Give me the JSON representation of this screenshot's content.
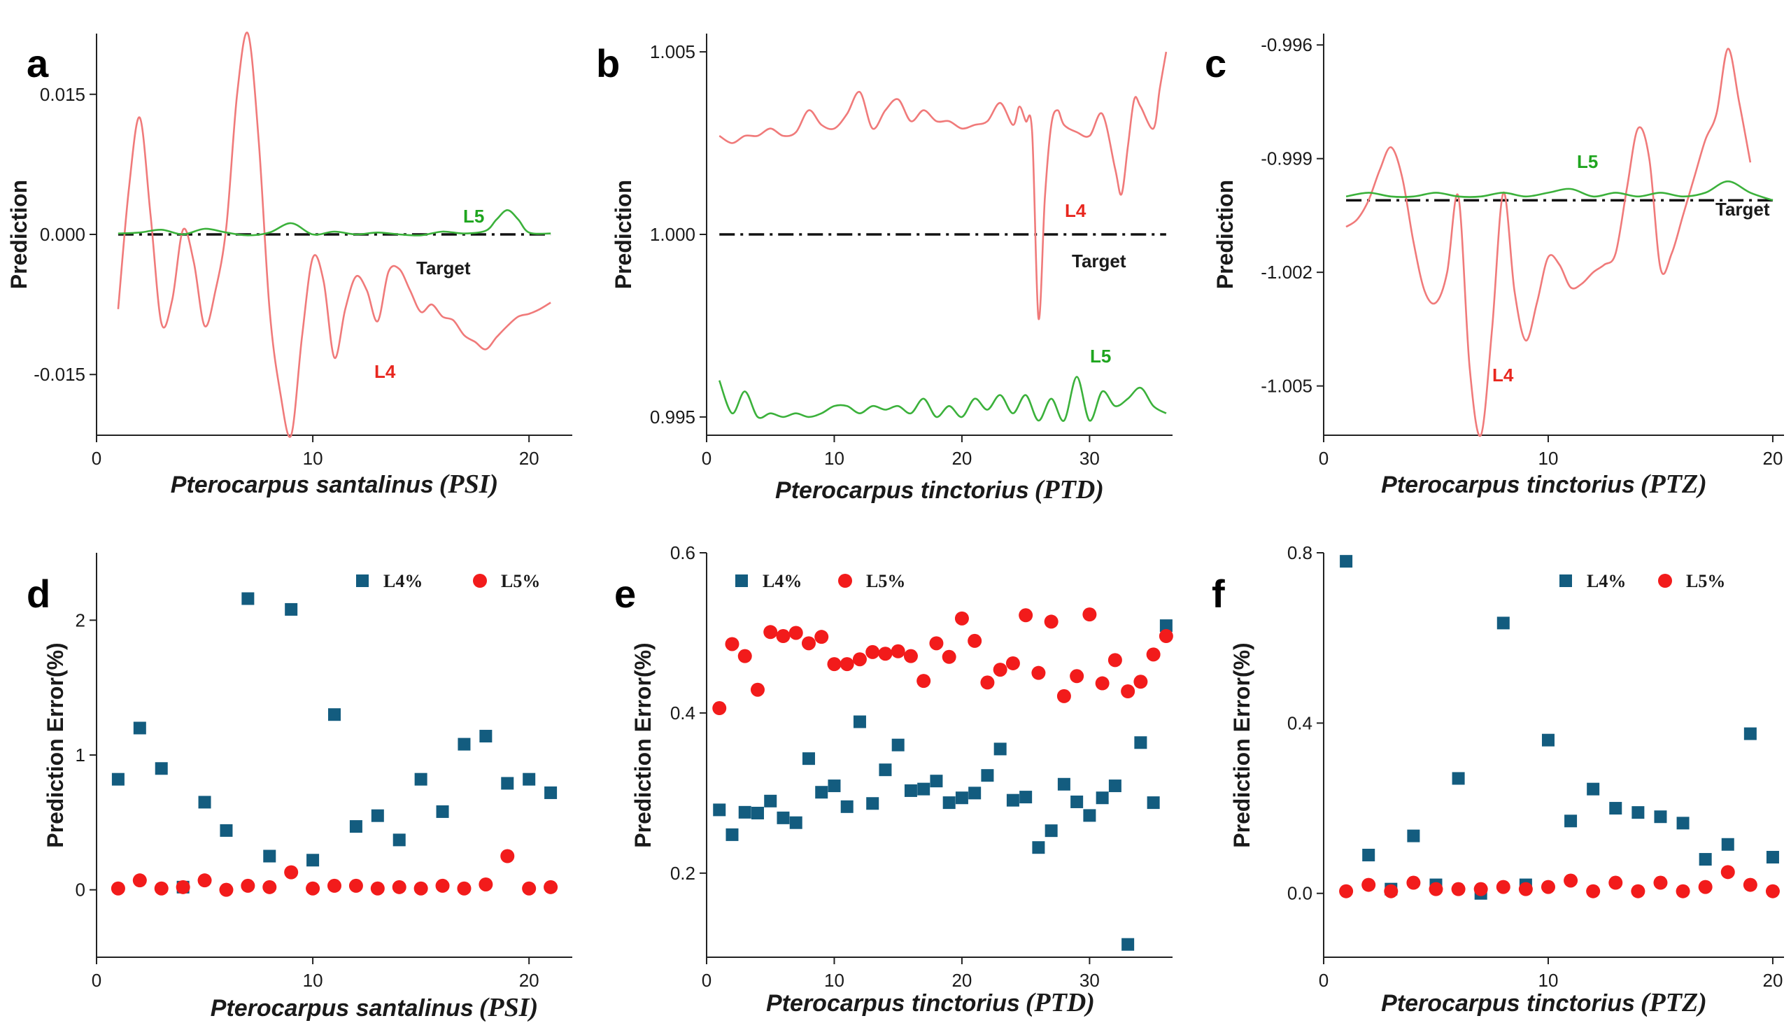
{
  "colors": {
    "l4": "#f07a7a",
    "l5": "#3bb13b",
    "target": "#111111",
    "sq": "#135c7f",
    "dot": "#f21b1b",
    "l4_text": "#e8271f",
    "l5_text": "#1fa51f"
  },
  "chart_data": [
    {
      "id": "a",
      "panel_label": "a",
      "type": "line",
      "ylabel": "Prediction",
      "xlabel_main": "Pterocarpus santalinus",
      "xlabel_paren": "(PSI)",
      "xlim": [
        0,
        22
      ],
      "ylim": [
        -0.0215,
        0.0215
      ],
      "xticks": [
        0,
        10,
        20
      ],
      "xtick_labels": [
        "0",
        "10",
        "20"
      ],
      "yticks": [
        -0.015,
        0,
        0.015
      ],
      "ytick_labels": [
        "-0.015",
        "0.000",
        "0.015"
      ],
      "target": {
        "name": "Target",
        "value": 0
      },
      "series": [
        {
          "name": "L4",
          "x": [
            1,
            1.5,
            2,
            2.5,
            3,
            3.5,
            4,
            4.5,
            5,
            5.5,
            6,
            6.5,
            7,
            7.5,
            8,
            8.5,
            9,
            9.5,
            10,
            10.5,
            11,
            11.5,
            12,
            12.5,
            13,
            13.5,
            14,
            14.5,
            15,
            15.5,
            16,
            16.5,
            17,
            17.5,
            18,
            18.5,
            19,
            19.5,
            20,
            20.5,
            21
          ],
          "y": [
            -0.008,
            0.005,
            0.0125,
            0.002,
            -0.0095,
            -0.007,
            0.0005,
            -0.003,
            -0.0098,
            -0.006,
            0.0008,
            0.015,
            0.0215,
            0.01,
            -0.008,
            -0.017,
            -0.0215,
            -0.011,
            -0.0025,
            -0.005,
            -0.0132,
            -0.008,
            -0.0045,
            -0.006,
            -0.0093,
            -0.004,
            -0.0037,
            -0.006,
            -0.0083,
            -0.0075,
            -0.0088,
            -0.0092,
            -0.0108,
            -0.0115,
            -0.0123,
            -0.011,
            -0.0098,
            -0.0088,
            -0.0085,
            -0.008,
            -0.0073
          ]
        },
        {
          "name": "L5",
          "x": [
            1,
            2,
            3,
            4,
            5,
            6,
            7,
            8,
            9,
            10,
            11,
            12,
            13,
            14,
            15,
            16,
            17,
            18,
            18.5,
            19,
            19.5,
            20,
            21
          ],
          "y": [
            0.0001,
            0.0002,
            0.0005,
            0.0,
            0.0006,
            0.0002,
            -0.0001,
            0.0002,
            0.0012,
            0.0,
            0.0003,
            0.0,
            0.0002,
            0.0,
            -0.0001,
            0.0003,
            0.0001,
            0.0004,
            0.0016,
            0.0026,
            0.0016,
            0.0002,
            0.0001
          ]
        }
      ],
      "annotations": {
        "L4": "L4",
        "L5": "L5",
        "Target": "Target"
      }
    },
    {
      "id": "b",
      "panel_label": "b",
      "type": "line",
      "ylabel": "Prediction",
      "xlabel_main": "Pterocarpus tinctorius",
      "xlabel_paren": "(PTD)",
      "xlim": [
        0,
        36.5
      ],
      "ylim": [
        0.9945,
        1.0055
      ],
      "xticks": [
        0,
        10,
        20,
        30
      ],
      "xtick_labels": [
        "0",
        "10",
        "20",
        "30"
      ],
      "yticks": [
        0.995,
        1.0,
        1.005
      ],
      "ytick_labels": [
        "0.995",
        "1.000",
        "1.005"
      ],
      "target": {
        "name": "Target",
        "value": 1.0
      },
      "series": [
        {
          "name": "L4",
          "x": [
            1,
            2,
            3,
            4,
            5,
            6,
            7,
            8,
            9,
            10,
            11,
            12,
            13,
            14,
            15,
            16,
            17,
            18,
            19,
            20,
            21,
            22,
            23,
            24,
            24.5,
            25,
            25.5,
            26,
            26.5,
            27,
            27.5,
            28,
            29,
            30,
            31,
            32,
            32.5,
            33,
            33.5,
            34,
            35,
            35.5,
            36
          ],
          "y": [
            1.0027,
            1.0025,
            1.0027,
            1.0027,
            1.0029,
            1.0027,
            1.0028,
            1.0034,
            1.003,
            1.0029,
            1.0033,
            1.0039,
            1.0029,
            1.0034,
            1.0037,
            1.0031,
            1.0034,
            1.0031,
            1.0031,
            1.0029,
            1.003,
            1.0031,
            1.0036,
            1.003,
            1.0035,
            1.0031,
            1.0028,
            0.9977,
            1.001,
            1.003,
            1.0034,
            1.003,
            1.0028,
            1.0027,
            1.0033,
            1.0018,
            1.0011,
            1.0024,
            1.0037,
            1.0035,
            1.0029,
            1.004,
            1.005
          ]
        },
        {
          "name": "L5",
          "x": [
            1,
            2,
            3,
            4,
            5,
            6,
            7,
            8,
            9,
            10,
            11,
            12,
            13,
            14,
            15,
            16,
            17,
            18,
            19,
            20,
            21,
            22,
            23,
            24,
            25,
            26,
            27,
            28,
            29,
            30,
            31,
            32,
            33,
            34,
            35,
            36
          ],
          "y": [
            0.996,
            0.9951,
            0.9957,
            0.995,
            0.9951,
            0.995,
            0.9951,
            0.995,
            0.9951,
            0.9953,
            0.9953,
            0.9951,
            0.9953,
            0.9952,
            0.9953,
            0.9951,
            0.9955,
            0.995,
            0.9953,
            0.995,
            0.9955,
            0.9952,
            0.9956,
            0.9951,
            0.9956,
            0.9949,
            0.9955,
            0.9949,
            0.9961,
            0.9949,
            0.9957,
            0.9953,
            0.9955,
            0.9958,
            0.9953,
            0.9951
          ]
        }
      ],
      "annotations": {
        "L4": "L4",
        "L5": "L5",
        "Target": "Target"
      }
    },
    {
      "id": "c",
      "panel_label": "c",
      "type": "line",
      "ylabel": "Prediction",
      "xlabel_main": "Pterocarpus tinctorius",
      "xlabel_paren": "(PTZ)",
      "xlim": [
        0,
        20.5
      ],
      "ylim": [
        -1.0063,
        -0.9957
      ],
      "xticks": [
        0,
        10,
        20
      ],
      "xtick_labels": [
        "0",
        "10",
        "20"
      ],
      "yticks": [
        -1.005,
        -1.002,
        -0.999,
        -0.996
      ],
      "ytick_labels": [
        "-1.005",
        "-1.002",
        "-0.999",
        "-0.996"
      ],
      "target": {
        "name": "Target",
        "value": -1.0001
      },
      "series": [
        {
          "name": "L4",
          "x": [
            1,
            1.5,
            2,
            2.5,
            3,
            3.5,
            4,
            4.5,
            5,
            5.5,
            6,
            6.5,
            7,
            7.5,
            8,
            8.5,
            9,
            9.5,
            10,
            10.5,
            11,
            11.5,
            12,
            12.5,
            13,
            13.5,
            14,
            14.5,
            15,
            15.5,
            16,
            16.5,
            17,
            17.5,
            18,
            18.5,
            19
          ],
          "y": [
            -1.0008,
            -1.0006,
            -1.0001,
            -0.9993,
            -0.9987,
            -0.9995,
            -1.0012,
            -1.0025,
            -1.0028,
            -1.002,
            -1.0,
            -1.0045,
            -1.0063,
            -1.0035,
            -0.9999,
            -1.0025,
            -1.0038,
            -1.0028,
            -1.0016,
            -1.0018,
            -1.0024,
            -1.0023,
            -1.002,
            -1.0018,
            -1.0015,
            -0.9998,
            -0.9982,
            -0.999,
            -1.0019,
            -1.0015,
            -1.0005,
            -0.9995,
            -0.9985,
            -0.9978,
            -0.9961,
            -0.9975,
            -0.9991
          ]
        },
        {
          "name": "L5",
          "x": [
            1,
            2,
            3,
            4,
            5,
            6,
            7,
            8,
            9,
            10,
            11,
            12,
            13,
            14,
            15,
            16,
            17,
            18,
            19,
            20
          ],
          "y": [
            -1.0,
            -0.9999,
            -1.0,
            -1.0,
            -0.9999,
            -1.0,
            -1.0,
            -0.9999,
            -1.0,
            -0.9999,
            -0.9998,
            -1.0,
            -0.9999,
            -1.0,
            -0.9999,
            -1.0,
            -0.9999,
            -0.9996,
            -0.9999,
            -1.0001
          ]
        }
      ],
      "annotations": {
        "L4": "L4",
        "L5": "L5",
        "Target": "Target"
      }
    },
    {
      "id": "d",
      "panel_label": "d",
      "type": "scatter",
      "ylabel": "Prediction Error(%)",
      "xlabel_main": "Pterocarpus santalinus",
      "xlabel_paren": "(PSI)",
      "xlim": [
        0,
        22
      ],
      "ylim": [
        -0.5,
        2.5
      ],
      "xticks": [
        0,
        10,
        20
      ],
      "xtick_labels": [
        "0",
        "10",
        "20"
      ],
      "yticks": [
        0,
        1,
        2
      ],
      "ytick_labels": [
        "0",
        "1",
        "2"
      ],
      "legend": {
        "position": "top-right",
        "entries": [
          "L4%",
          "L5%"
        ]
      },
      "series": [
        {
          "name": "L4%",
          "marker": "square",
          "x": [
            1,
            2,
            3,
            4,
            5,
            6,
            7,
            8,
            9,
            10,
            11,
            12,
            13,
            14,
            15,
            16,
            17,
            18,
            19,
            20,
            21
          ],
          "y": [
            0.82,
            1.2,
            0.9,
            0.02,
            0.65,
            0.44,
            2.16,
            0.25,
            2.08,
            0.22,
            1.3,
            0.47,
            0.55,
            0.37,
            0.82,
            0.58,
            1.08,
            1.14,
            0.79,
            0.82,
            0.72
          ]
        },
        {
          "name": "L5%",
          "marker": "circle",
          "x": [
            1,
            2,
            3,
            4,
            5,
            6,
            7,
            8,
            9,
            10,
            11,
            12,
            13,
            14,
            15,
            16,
            17,
            18,
            19,
            20,
            21
          ],
          "y": [
            0.01,
            0.07,
            0.01,
            0.02,
            0.07,
            0.0,
            0.03,
            0.02,
            0.13,
            0.01,
            0.03,
            0.03,
            0.01,
            0.02,
            0.01,
            0.03,
            0.01,
            0.04,
            0.25,
            0.01,
            0.02
          ]
        }
      ]
    },
    {
      "id": "e",
      "panel_label": "e",
      "type": "scatter",
      "ylabel": "Prediction Error(%)",
      "xlabel_main": "Pterocarpus tinctorius",
      "xlabel_paren": "(PTD)",
      "xlim": [
        0,
        36.5
      ],
      "ylim": [
        0.095,
        0.6
      ],
      "xticks": [
        0,
        10,
        20,
        30
      ],
      "xtick_labels": [
        "0",
        "10",
        "20",
        "30"
      ],
      "yticks": [
        0.2,
        0.4,
        0.6
      ],
      "ytick_labels": [
        "0.2",
        "0.4",
        "0.6"
      ],
      "legend": {
        "position": "top-left",
        "entries": [
          "L4%",
          "L5%"
        ]
      },
      "series": [
        {
          "name": "L4%",
          "marker": "square",
          "x": [
            1,
            2,
            3,
            4,
            5,
            6,
            7,
            8,
            9,
            10,
            11,
            12,
            13,
            14,
            15,
            16,
            17,
            18,
            19,
            20,
            21,
            22,
            23,
            24,
            25,
            26,
            27,
            28,
            29,
            30,
            31,
            32,
            33,
            34,
            35,
            36
          ],
          "y": [
            0.279,
            0.248,
            0.276,
            0.275,
            0.29,
            0.269,
            0.263,
            0.343,
            0.301,
            0.309,
            0.283,
            0.389,
            0.287,
            0.329,
            0.36,
            0.303,
            0.305,
            0.315,
            0.288,
            0.294,
            0.3,
            0.322,
            0.355,
            0.291,
            0.295,
            0.232,
            0.253,
            0.311,
            0.289,
            0.272,
            0.294,
            0.309,
            0.111,
            0.363,
            0.288,
            0.509
          ]
        },
        {
          "name": "L5%",
          "marker": "circle",
          "x": [
            1,
            2,
            3,
            4,
            5,
            6,
            7,
            8,
            9,
            10,
            11,
            12,
            13,
            14,
            15,
            16,
            17,
            18,
            19,
            20,
            21,
            22,
            23,
            24,
            25,
            26,
            27,
            28,
            29,
            30,
            31,
            32,
            33,
            34,
            35,
            36
          ],
          "y": [
            0.406,
            0.486,
            0.471,
            0.429,
            0.501,
            0.496,
            0.5,
            0.487,
            0.495,
            0.461,
            0.461,
            0.467,
            0.476,
            0.474,
            0.477,
            0.471,
            0.44,
            0.487,
            0.47,
            0.518,
            0.49,
            0.438,
            0.454,
            0.462,
            0.522,
            0.45,
            0.514,
            0.421,
            0.446,
            0.523,
            0.437,
            0.466,
            0.427,
            0.439,
            0.473,
            0.496
          ]
        }
      ]
    },
    {
      "id": "f",
      "panel_label": "f",
      "type": "scatter",
      "ylabel": "Prediction Error(%)",
      "xlabel_main": "Pterocarpus tinctorius",
      "xlabel_paren": "(PTZ)",
      "xlim": [
        0,
        20.5
      ],
      "ylim": [
        -0.15,
        0.8
      ],
      "xticks": [
        0,
        10,
        20
      ],
      "xtick_labels": [
        "0",
        "10",
        "20"
      ],
      "yticks": [
        0.0,
        0.4,
        0.8
      ],
      "ytick_labels": [
        "0.0",
        "0.4",
        "0.8"
      ],
      "legend": {
        "position": "top-right",
        "entries": [
          "L4%",
          "L5%"
        ]
      },
      "series": [
        {
          "name": "L4%",
          "marker": "square",
          "x": [
            1,
            2,
            3,
            4,
            5,
            6,
            7,
            8,
            9,
            10,
            11,
            12,
            13,
            14,
            15,
            16,
            17,
            18,
            19,
            20
          ],
          "y": [
            0.78,
            0.09,
            0.01,
            0.135,
            0.02,
            0.27,
            0.0,
            0.635,
            0.02,
            0.36,
            0.17,
            0.245,
            0.2,
            0.19,
            0.18,
            0.165,
            0.08,
            0.115,
            0.375,
            0.085
          ]
        },
        {
          "name": "L5%",
          "marker": "circle",
          "x": [
            1,
            2,
            3,
            4,
            5,
            6,
            7,
            8,
            9,
            10,
            11,
            12,
            13,
            14,
            15,
            16,
            17,
            18,
            19,
            20
          ],
          "y": [
            0.005,
            0.02,
            0.005,
            0.025,
            0.01,
            0.01,
            0.01,
            0.015,
            0.01,
            0.015,
            0.03,
            0.005,
            0.025,
            0.005,
            0.025,
            0.005,
            0.015,
            0.05,
            0.02,
            0.005
          ]
        }
      ]
    }
  ]
}
